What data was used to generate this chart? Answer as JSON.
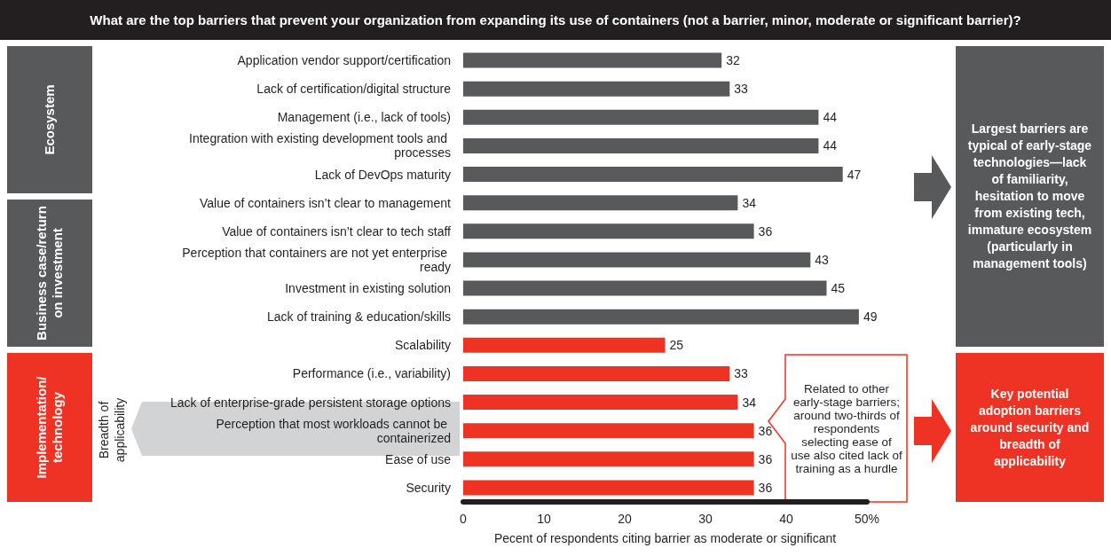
{
  "chart_data": {
    "type": "bar",
    "orientation": "horizontal",
    "title": "What are the top barriers that prevent your organization from expanding its use of containers (not a barrier, minor, moderate or significant barrier)?",
    "xlabel": "Pecent of respondents citing barrier as moderate or significant",
    "categories": [
      "Application vendor support/certification",
      "Lack of certification/digital structure",
      "Management (i.e., lack of tools)",
      "Integration with existing development tools and processes",
      "Lack of DevOps maturity",
      "Value of containers isn’t clear to management",
      "Value of containers isn’t clear to tech staff",
      "Perception that containers are not yet enterprise ready",
      "Investment in existing solution",
      "Lack of training & education/skills",
      "Scalability",
      "Performance (i.e., variability)",
      "Lack of enterprise-grade persistent storage options",
      "Perception that most workloads cannot be containerized",
      "Ease of use",
      "Security"
    ],
    "values": [
      32,
      33,
      44,
      44,
      47,
      34,
      36,
      43,
      45,
      49,
      25,
      33,
      34,
      36,
      36,
      36
    ],
    "colors": [
      "#58595b",
      "#58595b",
      "#58595b",
      "#58595b",
      "#58595b",
      "#58595b",
      "#58595b",
      "#58595b",
      "#58595b",
      "#58595b",
      "#ee3224",
      "#ee3224",
      "#ee3224",
      "#ee3224",
      "#ee3224",
      "#ee3224"
    ],
    "xlim": [
      0,
      50
    ],
    "xticks": [
      0,
      10,
      20,
      30,
      40,
      {
        "value": 50,
        "label": "50%"
      }
    ],
    "data_labels": true,
    "grid": false,
    "annotations": [
      "Ecosystem",
      "Business case/return on investment",
      "Implementation/ technology",
      "Breadth of applicability",
      "Related to other early-stage barriers; around two-thirds of respondents selecting ease of use also cited lack of training as a hurdle",
      "Largest barriers are typical of early-stage technologies—lack of familiarity, hesitation to move from existing tech, immature ecosystem (particularly in management tools)",
      "Key potential adoption barriers around security and breadth of applicability"
    ]
  }
}
